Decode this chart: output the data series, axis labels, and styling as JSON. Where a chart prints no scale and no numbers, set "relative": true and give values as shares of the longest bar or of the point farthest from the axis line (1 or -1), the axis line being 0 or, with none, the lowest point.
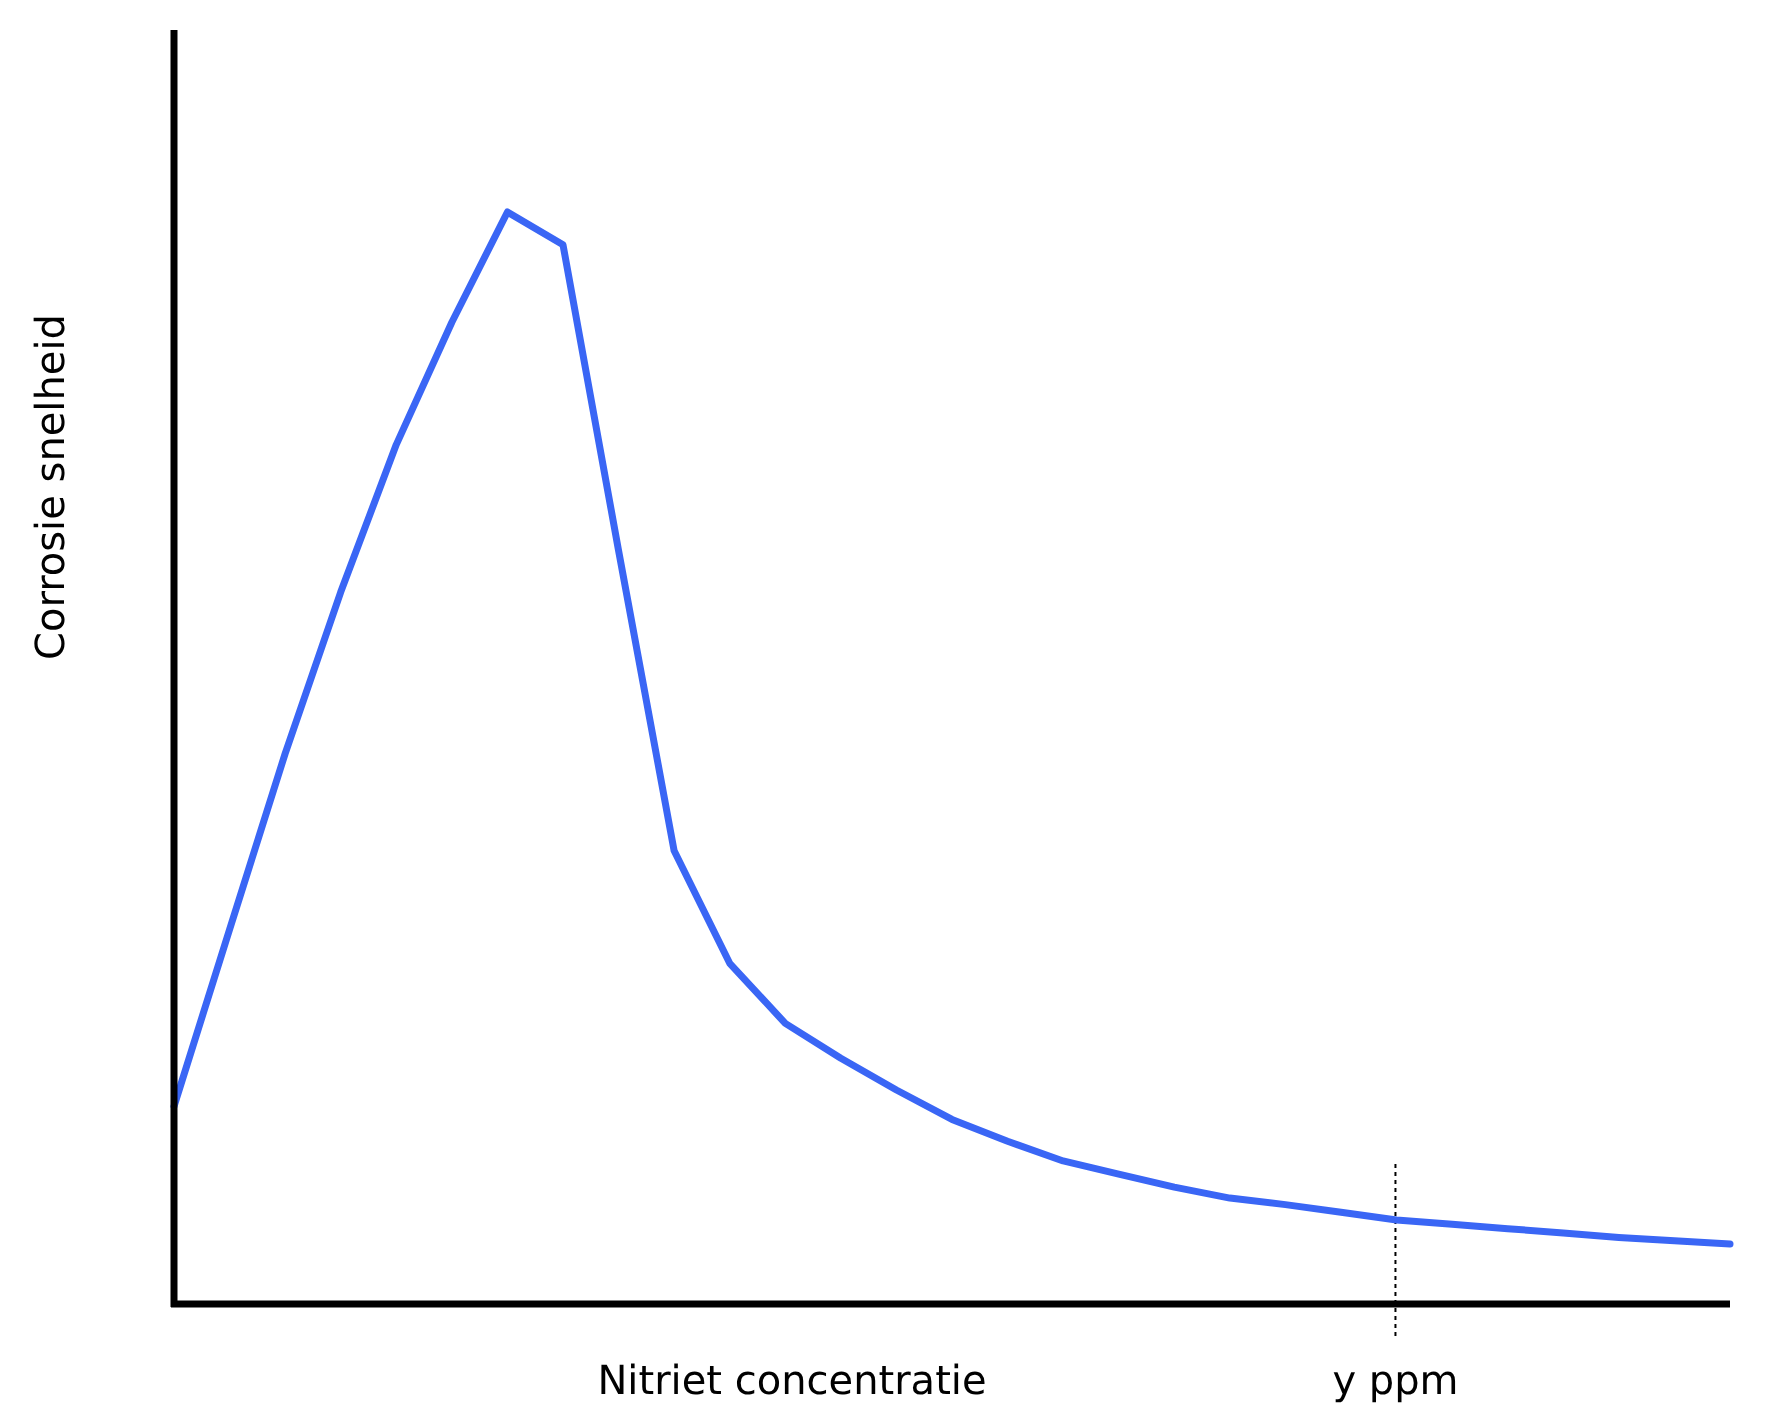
{
  "chart_data": {
    "type": "line",
    "relative": true,
    "xlabel": "Nitriet concentratie",
    "ylabel": "Corrosie snelheid",
    "categories": [
      null,
      null,
      null,
      null,
      null,
      null,
      null,
      null,
      null,
      null,
      null,
      null,
      null,
      null,
      null,
      null,
      null,
      null,
      null,
      null,
      null,
      null,
      null,
      null,
      null,
      null,
      null,
      null,
      null
    ],
    "series": [
      {
        "color": "#3a66f5",
        "values": [
          0.181,
          0.343,
          0.504,
          0.652,
          0.787,
          0.899,
          1,
          0.97,
          0.69,
          0.415,
          0.312,
          0.257,
          0.225,
          0.196,
          0.169,
          0.149,
          0.131,
          0.119,
          0.107,
          0.097,
          0.091,
          0.084,
          0.077,
          0.073,
          0.069,
          0.065,
          0.061,
          0.058,
          0.055
        ]
      }
    ],
    "annotations": [
      "y ppm"
    ]
  }
}
